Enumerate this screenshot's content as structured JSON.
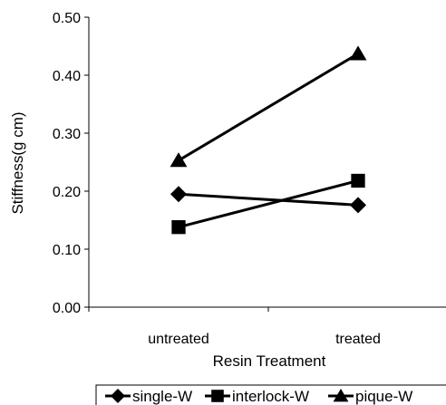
{
  "chart_data": {
    "type": "line",
    "categories": [
      "untreated",
      "treated"
    ],
    "xlabel": "Resin Treatment",
    "ylabel": "Stiffness(g cm)",
    "ylim": [
      0,
      0.5
    ],
    "yticks": [
      "0.00",
      "0.10",
      "0.20",
      "0.30",
      "0.40",
      "0.50"
    ],
    "grid": false,
    "legend_position": "bottom",
    "series": [
      {
        "name": "single-W",
        "marker": "diamond",
        "values": [
          0.195,
          0.176
        ],
        "color": "#000000"
      },
      {
        "name": "interlock-W",
        "marker": "square",
        "values": [
          0.138,
          0.218
        ],
        "color": "#000000"
      },
      {
        "name": "pique-W",
        "marker": "triangle",
        "values": [
          0.253,
          0.437
        ],
        "color": "#000000"
      }
    ]
  }
}
